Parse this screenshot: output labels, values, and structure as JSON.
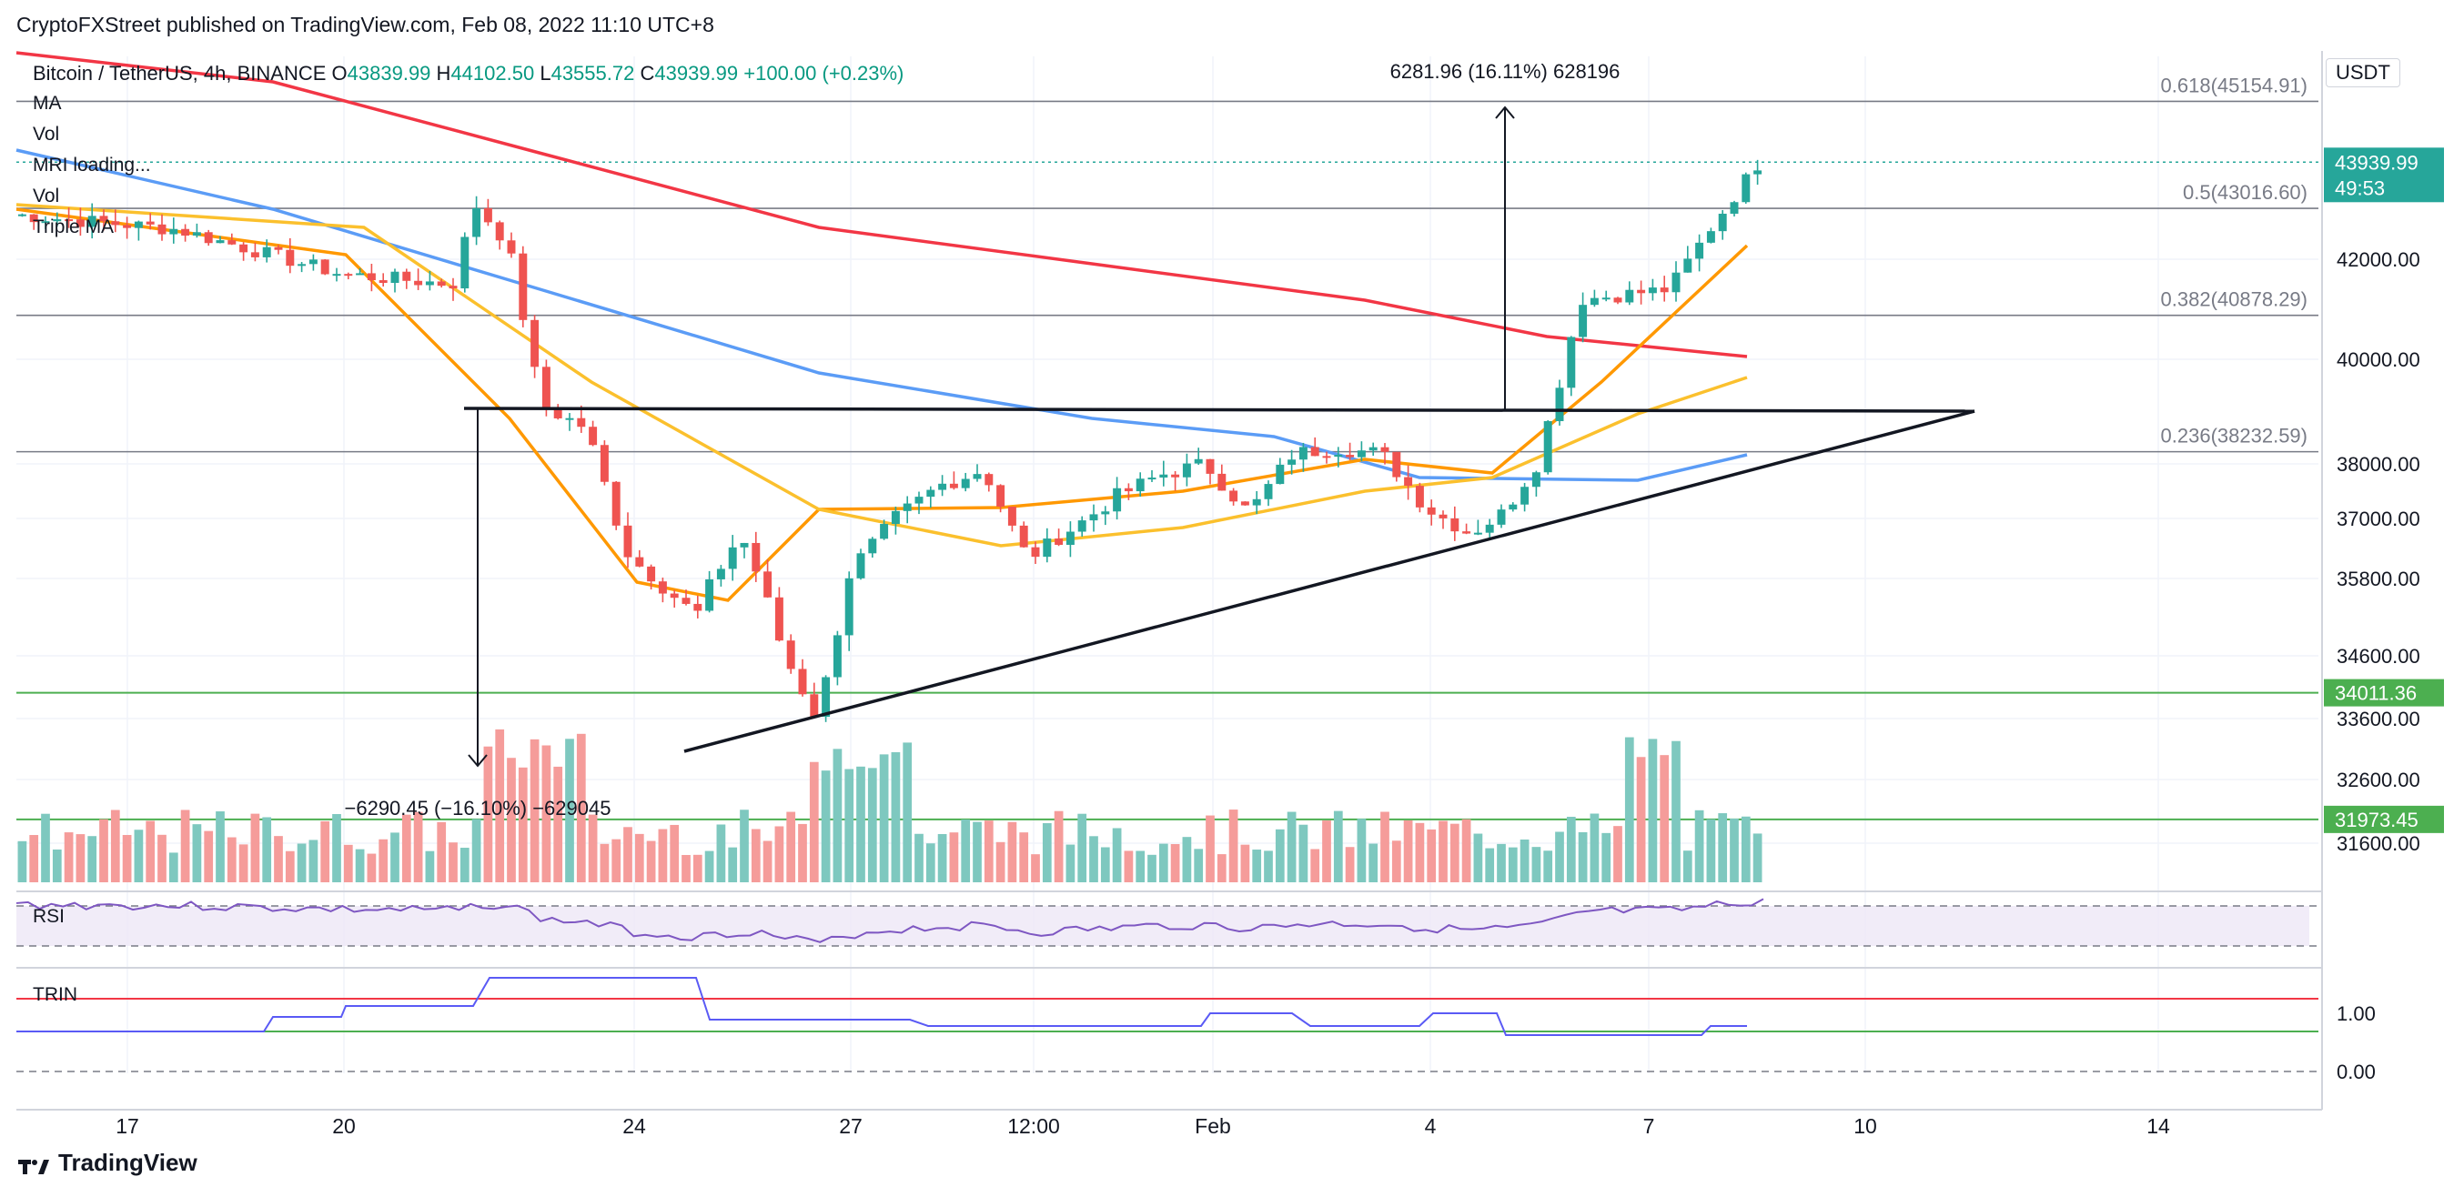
{
  "header": {
    "text": "CryptoFXStreet published on TradingView.com, Feb 08, 2022 11:10 UTC+8"
  },
  "legend": {
    "symbol": "Bitcoin / TetherUS, 4h, BINANCE",
    "o_label": "O",
    "o": "43839.99",
    "h_label": "H",
    "h": "44102.50",
    "l_label": "L",
    "l": "43555.72",
    "c_label": "C",
    "c": "43939.99",
    "change": "+100.00 (+0.23%)",
    "indicators": [
      "MA",
      "Vol",
      "MRI loading...",
      "Vol",
      "Triple MA"
    ]
  },
  "currency_button": "USDT",
  "footer": {
    "brand": "TradingView"
  },
  "colors": {
    "up": "#26a69a",
    "down": "#ef5350",
    "vol_up": "#7ec8bf",
    "vol_down": "#f59c9a",
    "ma_red": "#f23645",
    "ma_orange": "#ff9800",
    "ma_yellow": "#fbc02d",
    "ma_blue": "#5b9cf6",
    "rsi": "#7e57c2",
    "trin": "#5a5af5",
    "green_level": "#4caf50"
  },
  "chart_data": {
    "type": "candlestick",
    "price_axis": {
      "ticks": [
        "42000.00",
        "40000.00",
        "38000.00",
        "37000.00",
        "35800.00",
        "34600.00",
        "33600.00",
        "32600.00",
        "31600.00"
      ],
      "last_price": "43939.99",
      "countdown": "49:53",
      "top_clip": "4"
    },
    "x_axis": {
      "ticks": [
        "17",
        "20",
        "24",
        "27",
        "12:00",
        "Feb",
        "4",
        "7",
        "10",
        "14"
      ]
    },
    "levels": [
      {
        "kind": "fib",
        "label": "0.618(45154.91)",
        "price": 45154.91
      },
      {
        "kind": "fib",
        "label": "0.5(43016.60)",
        "price": 43016.6
      },
      {
        "kind": "fib",
        "label": "0.382(40878.29)",
        "price": 40878.29
      },
      {
        "kind": "fib",
        "label": "0.236(38232.59)",
        "price": 38232.59
      },
      {
        "kind": "support",
        "label": "34011.36",
        "price": 34011.36
      },
      {
        "kind": "support",
        "label": "31973.45",
        "price": 31973.45
      }
    ],
    "annotations": {
      "measure_up": "6281.96 (16.11%) 628196",
      "measure_down": "−6290.45 (−16.10%) −629045"
    },
    "rsi": {
      "label": "RSI"
    },
    "trin": {
      "label": "TRIN",
      "ticks": [
        "1.00",
        "0.00"
      ]
    }
  }
}
